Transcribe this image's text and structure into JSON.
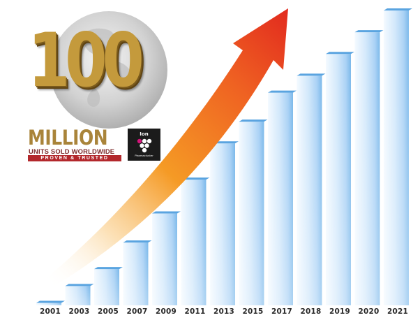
{
  "chart_data": {
    "type": "bar",
    "categories": [
      "2001",
      "2003",
      "2005",
      "2007",
      "2009",
      "2011",
      "2013",
      "2015",
      "2017",
      "2018",
      "2019",
      "2020",
      "2021"
    ],
    "values": [
      1,
      8,
      15,
      26,
      38,
      52,
      67,
      76,
      88,
      95,
      104,
      113,
      122
    ],
    "ylim": [
      0,
      122
    ],
    "title": "",
    "xlabel": "",
    "ylabel": "",
    "grid": false,
    "legend": "none",
    "annotations": [
      "growth-arrow"
    ]
  },
  "badge": {
    "number": "100",
    "million": "MILLION",
    "units_line": "UNITS SOLD WORLDWIDE",
    "ribbon": "PROVEN & TRUSTED",
    "logo_word": "Ion",
    "logo_footer": "Plasmacluster"
  },
  "colors": {
    "bar_light": "#eef6fe",
    "bar_mid": "#bcdcf7",
    "bar_dark": "#7ab8ea",
    "bar_top": "#5aa4e0",
    "arrow_start": "#ffffff",
    "arrow_mid": "#f59a25",
    "arrow_end": "#e22a1e",
    "gold": "#c49a3c",
    "ribbon_red": "#b3282c",
    "logo_bg": "#1b1b1b"
  }
}
